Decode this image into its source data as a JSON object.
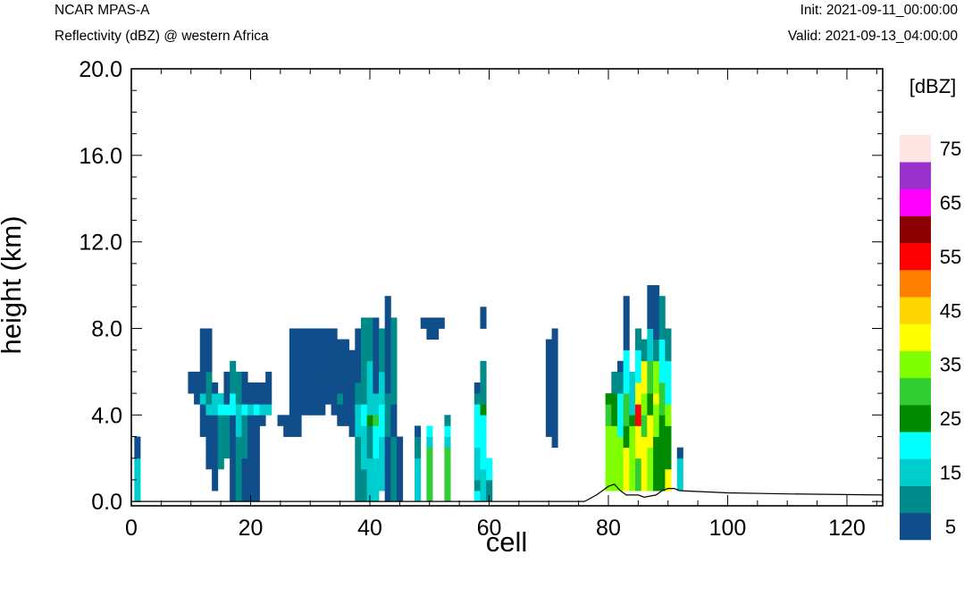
{
  "header": {
    "model": "NCAR MPAS-A",
    "field": "Reflectivity (dBZ) @ western Africa",
    "init": "Init: 2021-09-11_00:00:00",
    "valid": "Valid: 2021-09-13_04:00:00"
  },
  "chart_data": {
    "type": "heatmap",
    "title": "Reflectivity (dBZ) @ western Africa",
    "xlabel": "cell",
    "ylabel": "height (km)",
    "xlim": [
      0,
      126
    ],
    "ylim": [
      -0.2,
      20.0
    ],
    "x_ticks": [
      0,
      20,
      40,
      60,
      80,
      100,
      120
    ],
    "y_ticks": [
      0.0,
      4.0,
      8.0,
      12.0,
      16.0,
      20.0
    ],
    "x_tick_labels": [
      "0",
      "20",
      "40",
      "60",
      "80",
      "100",
      "120"
    ],
    "y_tick_labels": [
      "0.0",
      "4.0",
      "8.0",
      "12.0",
      "16.0",
      "20.0"
    ],
    "colorbar": {
      "title": "[dBZ]",
      "levels": [
        5,
        10,
        15,
        20,
        25,
        30,
        35,
        40,
        45,
        50,
        55,
        60,
        65,
        70,
        75
      ],
      "labels": [
        "5",
        "15",
        "25",
        "35",
        "45",
        "55",
        "65",
        "75"
      ],
      "colors": [
        "#104e8b",
        "#008b8b",
        "#00cdcd",
        "#00ffff",
        "#008b00",
        "#32cd32",
        "#7fff00",
        "#ffff00",
        "#ffd700",
        "#ff8000",
        "#ff0000",
        "#8b0000",
        "#ff00ff",
        "#9932cc",
        "#ffe4e1"
      ]
    },
    "cell_height_km": 0.5,
    "columns": [
      {
        "x": 1,
        "segments": [
          [
            0,
            2,
            15
          ],
          [
            2,
            3,
            5
          ]
        ]
      },
      {
        "x": 10,
        "segments": [
          [
            5,
            6,
            5
          ]
        ]
      },
      {
        "x": 11,
        "segments": [
          [
            4.5,
            6,
            5
          ]
        ]
      },
      {
        "x": 12,
        "segments": [
          [
            3,
            4.5,
            5
          ],
          [
            4.5,
            5,
            15
          ],
          [
            5,
            8,
            5
          ]
        ]
      },
      {
        "x": 13,
        "segments": [
          [
            1.5,
            4,
            5
          ],
          [
            4,
            4.5,
            15
          ],
          [
            4.5,
            6,
            10
          ],
          [
            6,
            8,
            5
          ]
        ]
      },
      {
        "x": 14,
        "segments": [
          [
            0.5,
            4,
            5
          ],
          [
            4,
            5,
            15
          ],
          [
            5,
            5.5,
            5
          ]
        ]
      },
      {
        "x": 15,
        "segments": [
          [
            1.5,
            4,
            10
          ],
          [
            4,
            4.5,
            20
          ],
          [
            4.5,
            5,
            15
          ]
        ]
      },
      {
        "x": 16,
        "segments": [
          [
            2,
            4,
            10
          ],
          [
            4,
            4.5,
            20
          ],
          [
            4.5,
            6,
            5
          ]
        ]
      },
      {
        "x": 17,
        "segments": [
          [
            0,
            4,
            5
          ],
          [
            4,
            5,
            20
          ],
          [
            5,
            6.5,
            10
          ]
        ]
      },
      {
        "x": 18,
        "segments": [
          [
            0,
            3,
            10
          ],
          [
            3,
            4.5,
            15
          ],
          [
            4.5,
            6,
            10
          ]
        ]
      },
      {
        "x": 19,
        "segments": [
          [
            0,
            2,
            5
          ],
          [
            2,
            4,
            10
          ],
          [
            4,
            4.5,
            20
          ],
          [
            4.5,
            6,
            5
          ]
        ]
      },
      {
        "x": 20,
        "segments": [
          [
            0,
            4,
            5
          ],
          [
            4,
            4.5,
            15
          ],
          [
            4.5,
            5.5,
            5
          ]
        ]
      },
      {
        "x": 21,
        "segments": [
          [
            0,
            4,
            5
          ],
          [
            4,
            4.5,
            20
          ],
          [
            4.5,
            5.5,
            5
          ]
        ]
      },
      {
        "x": 22,
        "segments": [
          [
            3.5,
            4,
            5
          ],
          [
            4,
            4.5,
            15
          ],
          [
            4.5,
            5.5,
            5
          ]
        ]
      },
      {
        "x": 23,
        "segments": [
          [
            4,
            4.5,
            15
          ],
          [
            4.5,
            6,
            5
          ]
        ]
      },
      {
        "x": 25,
        "segments": [
          [
            3.5,
            4,
            5
          ]
        ]
      },
      {
        "x": 26,
        "segments": [
          [
            3,
            4,
            5
          ]
        ]
      },
      {
        "x": 27,
        "segments": [
          [
            3,
            4.5,
            5
          ],
          [
            4.5,
            8,
            5
          ]
        ]
      },
      {
        "x": 28,
        "segments": [
          [
            3,
            4.5,
            5
          ],
          [
            4.5,
            8,
            5
          ]
        ]
      },
      {
        "x": 29,
        "segments": [
          [
            4,
            5.5,
            5
          ],
          [
            5.5,
            8,
            5
          ]
        ]
      },
      {
        "x": 30,
        "segments": [
          [
            4,
            8,
            5
          ]
        ]
      },
      {
        "x": 31,
        "segments": [
          [
            4,
            8,
            5
          ]
        ]
      },
      {
        "x": 32,
        "segments": [
          [
            4,
            6,
            5
          ],
          [
            6,
            8,
            5
          ]
        ]
      },
      {
        "x": 33,
        "segments": [
          [
            4.5,
            8,
            5
          ]
        ]
      },
      {
        "x": 34,
        "segments": [
          [
            4,
            5,
            5
          ],
          [
            5,
            7.5,
            5
          ],
          [
            7.5,
            8,
            5
          ]
        ]
      },
      {
        "x": 35,
        "segments": [
          [
            3.5,
            4.5,
            5
          ],
          [
            4.5,
            5,
            10
          ],
          [
            5,
            7.5,
            5
          ]
        ]
      },
      {
        "x": 36,
        "segments": [
          [
            3.5,
            4.5,
            5
          ],
          [
            4.5,
            7.5,
            5
          ]
        ]
      },
      {
        "x": 37,
        "segments": [
          [
            3,
            4.5,
            5
          ],
          [
            4.5,
            7,
            5
          ]
        ]
      },
      {
        "x": 38,
        "segments": [
          [
            0,
            3,
            10
          ],
          [
            3,
            4.5,
            15
          ],
          [
            4.5,
            5.5,
            10
          ],
          [
            5.5,
            8,
            5
          ]
        ]
      },
      {
        "x": 39,
        "segments": [
          [
            0,
            1.5,
            10
          ],
          [
            1.5,
            3.5,
            15
          ],
          [
            3.5,
            4.5,
            20
          ],
          [
            4.5,
            8.5,
            10
          ]
        ]
      },
      {
        "x": 40,
        "segments": [
          [
            0,
            2,
            15
          ],
          [
            2,
            3.5,
            10
          ],
          [
            3.5,
            4,
            25
          ],
          [
            4,
            6.5,
            15
          ],
          [
            6.5,
            8.5,
            10
          ]
        ]
      },
      {
        "x": 41,
        "segments": [
          [
            0,
            2,
            15
          ],
          [
            2,
            3.5,
            20
          ],
          [
            3.5,
            4,
            30
          ],
          [
            4,
            5,
            15
          ],
          [
            5,
            8.5,
            5
          ]
        ]
      },
      {
        "x": 42,
        "segments": [
          [
            0.5,
            3,
            15
          ],
          [
            3,
            4.5,
            20
          ],
          [
            4.5,
            6,
            15
          ],
          [
            6,
            8,
            10
          ]
        ]
      },
      {
        "x": 43,
        "segments": [
          [
            0,
            3,
            5
          ],
          [
            3,
            5,
            10
          ],
          [
            5,
            9.5,
            5
          ]
        ]
      },
      {
        "x": 44,
        "segments": [
          [
            0,
            3,
            10
          ],
          [
            3,
            4.5,
            5
          ],
          [
            4.5,
            8.5,
            10
          ]
        ]
      },
      {
        "x": 45,
        "segments": [
          [
            0,
            3,
            5
          ]
        ]
      },
      {
        "x": 48,
        "segments": [
          [
            0,
            2,
            15
          ],
          [
            2,
            3,
            10
          ],
          [
            3,
            3.5,
            5
          ]
        ]
      },
      {
        "x": 49,
        "segments": [
          [
            8,
            8.5,
            5
          ]
        ]
      },
      {
        "x": 50,
        "segments": [
          [
            0,
            2.5,
            30
          ],
          [
            2.5,
            3,
            15
          ],
          [
            3,
            3.5,
            20
          ],
          [
            7.5,
            8.5,
            5
          ]
        ]
      },
      {
        "x": 51,
        "segments": [
          [
            7.5,
            8.5,
            5
          ]
        ]
      },
      {
        "x": 52,
        "segments": [
          [
            8,
            8.5,
            5
          ]
        ]
      },
      {
        "x": 53,
        "segments": [
          [
            0,
            2.5,
            30
          ],
          [
            2.5,
            3,
            15
          ],
          [
            3,
            3.5,
            20
          ],
          [
            3.5,
            4,
            10
          ]
        ]
      },
      {
        "x": 58,
        "segments": [
          [
            0,
            0.5,
            20
          ],
          [
            0.5,
            1,
            10
          ],
          [
            1,
            2.5,
            15
          ],
          [
            2.5,
            4.5,
            20
          ],
          [
            4.5,
            5,
            10
          ],
          [
            5,
            5.5,
            5
          ]
        ]
      },
      {
        "x": 59,
        "segments": [
          [
            0,
            1.5,
            15
          ],
          [
            1.5,
            4,
            20
          ],
          [
            4,
            4.5,
            25
          ],
          [
            4.5,
            6.5,
            10
          ],
          [
            8,
            9,
            5
          ]
        ]
      },
      {
        "x": 60,
        "segments": [
          [
            0,
            1,
            10
          ],
          [
            1,
            2,
            20
          ]
        ]
      },
      {
        "x": 70,
        "segments": [
          [
            3,
            5,
            5
          ],
          [
            5,
            7.5,
            5
          ]
        ]
      },
      {
        "x": 71,
        "segments": [
          [
            2.5,
            4.5,
            5
          ],
          [
            4.5,
            8,
            5
          ]
        ]
      },
      {
        "x": 80,
        "segments": [
          [
            0.5,
            3.5,
            35
          ],
          [
            3.5,
            4.5,
            30
          ],
          [
            4.5,
            5,
            25
          ]
        ]
      },
      {
        "x": 81,
        "segments": [
          [
            0.5,
            3.5,
            35
          ],
          [
            3.5,
            5,
            25
          ],
          [
            5,
            6,
            10
          ]
        ]
      },
      {
        "x": 82,
        "segments": [
          [
            0.5,
            3,
            35
          ],
          [
            3,
            5,
            20
          ],
          [
            5,
            6,
            10
          ],
          [
            6,
            6.5,
            5
          ]
        ]
      },
      {
        "x": 83,
        "segments": [
          [
            0.5,
            2.5,
            40
          ],
          [
            2.5,
            3.5,
            25
          ],
          [
            3.5,
            5,
            30
          ],
          [
            5,
            7,
            20
          ],
          [
            7,
            9.5,
            5
          ]
        ]
      },
      {
        "x": 84,
        "segments": [
          [
            0.5,
            3.5,
            35
          ],
          [
            3.5,
            4,
            25
          ],
          [
            4,
            6,
            15
          ]
        ]
      },
      {
        "x": 85,
        "segments": [
          [
            0.5,
            2,
            30
          ],
          [
            2,
            3.5,
            40
          ],
          [
            3.5,
            4.5,
            55
          ],
          [
            4.5,
            5.5,
            40
          ],
          [
            5.5,
            7,
            20
          ],
          [
            7,
            8,
            10
          ]
        ]
      },
      {
        "x": 86,
        "segments": [
          [
            0.5,
            3,
            40
          ],
          [
            3,
            4,
            30
          ],
          [
            4,
            5,
            35
          ],
          [
            5,
            6.5,
            40
          ],
          [
            6.5,
            7.5,
            10
          ]
        ]
      },
      {
        "x": 87,
        "segments": [
          [
            0.5,
            2.5,
            35
          ],
          [
            2.5,
            4,
            40
          ],
          [
            4,
            5,
            25
          ],
          [
            5,
            6.5,
            30
          ],
          [
            6.5,
            8,
            15
          ],
          [
            8,
            10,
            5
          ]
        ]
      },
      {
        "x": 88,
        "segments": [
          [
            0.5,
            3,
            25
          ],
          [
            3,
            4.5,
            35
          ],
          [
            4.5,
            5,
            40
          ],
          [
            5,
            6.5,
            35
          ],
          [
            6.5,
            7.5,
            10
          ],
          [
            7.5,
            10,
            5
          ]
        ]
      },
      {
        "x": 89,
        "segments": [
          [
            0.5,
            4,
            25
          ],
          [
            4,
            5.5,
            30
          ],
          [
            5.5,
            7.5,
            20
          ],
          [
            7.5,
            9.5,
            10
          ]
        ]
      },
      {
        "x": 90,
        "segments": [
          [
            0.5,
            1.5,
            40
          ],
          [
            1.5,
            3.5,
            25
          ],
          [
            3.5,
            4.5,
            35
          ],
          [
            4.5,
            6.5,
            20
          ],
          [
            6.5,
            8,
            10
          ]
        ]
      },
      {
        "x": 92,
        "segments": [
          [
            0.5,
            2,
            15
          ],
          [
            2,
            2.5,
            5
          ]
        ]
      }
    ],
    "terrain": [
      [
        0,
        0
      ],
      [
        76,
        0
      ],
      [
        78,
        0.3
      ],
      [
        80,
        0.7
      ],
      [
        81,
        0.8
      ],
      [
        82,
        0.5
      ],
      [
        83,
        0.3
      ],
      [
        85,
        0.3
      ],
      [
        86,
        0.2
      ],
      [
        88,
        0.3
      ],
      [
        89,
        0.5
      ],
      [
        90,
        0.6
      ],
      [
        91,
        0.6
      ],
      [
        92,
        0.5
      ],
      [
        100,
        0.4
      ],
      [
        110,
        0.35
      ],
      [
        126,
        0.3
      ]
    ]
  }
}
